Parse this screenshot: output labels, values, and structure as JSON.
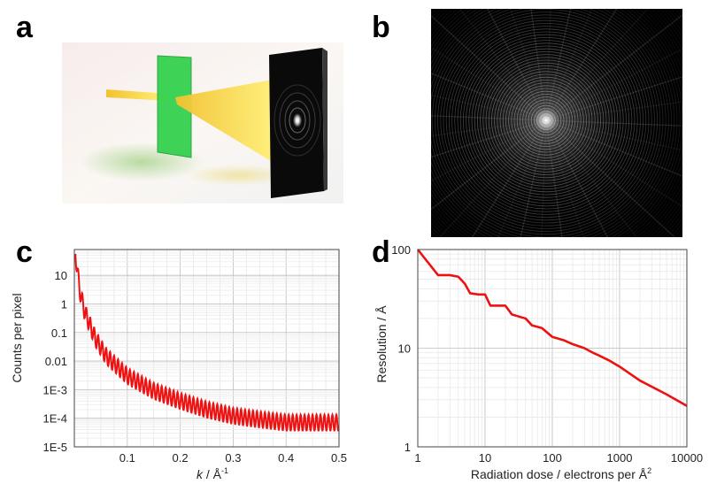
{
  "panels": {
    "a": {
      "letter": "a"
    },
    "b": {
      "letter": "b"
    },
    "c": {
      "letter": "c"
    },
    "d": {
      "letter": "d"
    }
  },
  "colors": {
    "curve": "#ee1111",
    "beam": "#f4e03a",
    "sample": "#2fd04a",
    "detector": "#0a0a0a",
    "grid": "#cfcfcf"
  },
  "chart_data": [
    {
      "panel": "c",
      "type": "line",
      "xlabel_var": "k",
      "xlabel_unit": " / Å",
      "xlabel_sup": "-1",
      "ylabel": "Counts per pixel",
      "xscale": "linear",
      "yscale": "log",
      "xlim": [
        0,
        0.5
      ],
      "ylim": [
        1e-05,
        80
      ],
      "grid": true,
      "xticks": [
        0.1,
        0.2,
        0.3,
        0.4,
        0.5
      ],
      "xtick_labels": [
        "0.1",
        "0.2",
        "0.3",
        "0.4",
        "0.5"
      ],
      "yticks": [
        1e-05,
        0.0001,
        0.001,
        0.01,
        0.1,
        1,
        10
      ],
      "ytick_labels": [
        "1E-5",
        "1E-4",
        "1E-3",
        "0.01",
        "0.1",
        "1",
        "10"
      ],
      "oscillation_period": 0.0075,
      "series": [
        {
          "color": "#ee1111",
          "envelope": [
            {
              "x": 0.002,
              "y": 60
            },
            {
              "x": 0.01,
              "y": 3
            },
            {
              "x": 0.02,
              "y": 0.5
            },
            {
              "x": 0.04,
              "y": 0.06
            },
            {
              "x": 0.06,
              "y": 0.015
            },
            {
              "x": 0.1,
              "y": 0.003
            },
            {
              "x": 0.15,
              "y": 0.0009
            },
            {
              "x": 0.2,
              "y": 0.0004
            },
            {
              "x": 0.25,
              "y": 0.0002
            },
            {
              "x": 0.3,
              "y": 0.00012
            },
            {
              "x": 0.35,
              "y": 9e-05
            },
            {
              "x": 0.4,
              "y": 7e-05
            },
            {
              "x": 0.45,
              "y": 7e-05
            },
            {
              "x": 0.5,
              "y": 7e-05
            }
          ]
        }
      ]
    },
    {
      "panel": "d",
      "type": "line",
      "xlabel": "Radiation dose / electrons per Å",
      "xlabel_sup": "2",
      "ylabel": "Resolution / Å",
      "xscale": "log",
      "yscale": "log",
      "xlim": [
        1,
        10000
      ],
      "ylim": [
        1,
        100
      ],
      "grid": true,
      "xticks": [
        1,
        10,
        100,
        1000,
        10000
      ],
      "xtick_labels": [
        "1",
        "10",
        "100",
        "1000",
        "10000"
      ],
      "yticks": [
        1,
        10,
        100
      ],
      "ytick_labels": [
        "1",
        "10",
        "100"
      ],
      "series": [
        {
          "color": "#ee1111",
          "x": [
            1,
            2,
            3,
            4,
            5,
            6,
            8,
            10,
            12,
            20,
            25,
            40,
            50,
            70,
            100,
            150,
            200,
            300,
            400,
            500,
            700,
            1000,
            2000,
            5000,
            10000
          ],
          "y": [
            100,
            55,
            55,
            53,
            45,
            36,
            35,
            35,
            27,
            27,
            22,
            20,
            17,
            16,
            13,
            12,
            11,
            10,
            9,
            8.4,
            7.5,
            6.5,
            4.7,
            3.4,
            2.6
          ]
        }
      ]
    }
  ]
}
